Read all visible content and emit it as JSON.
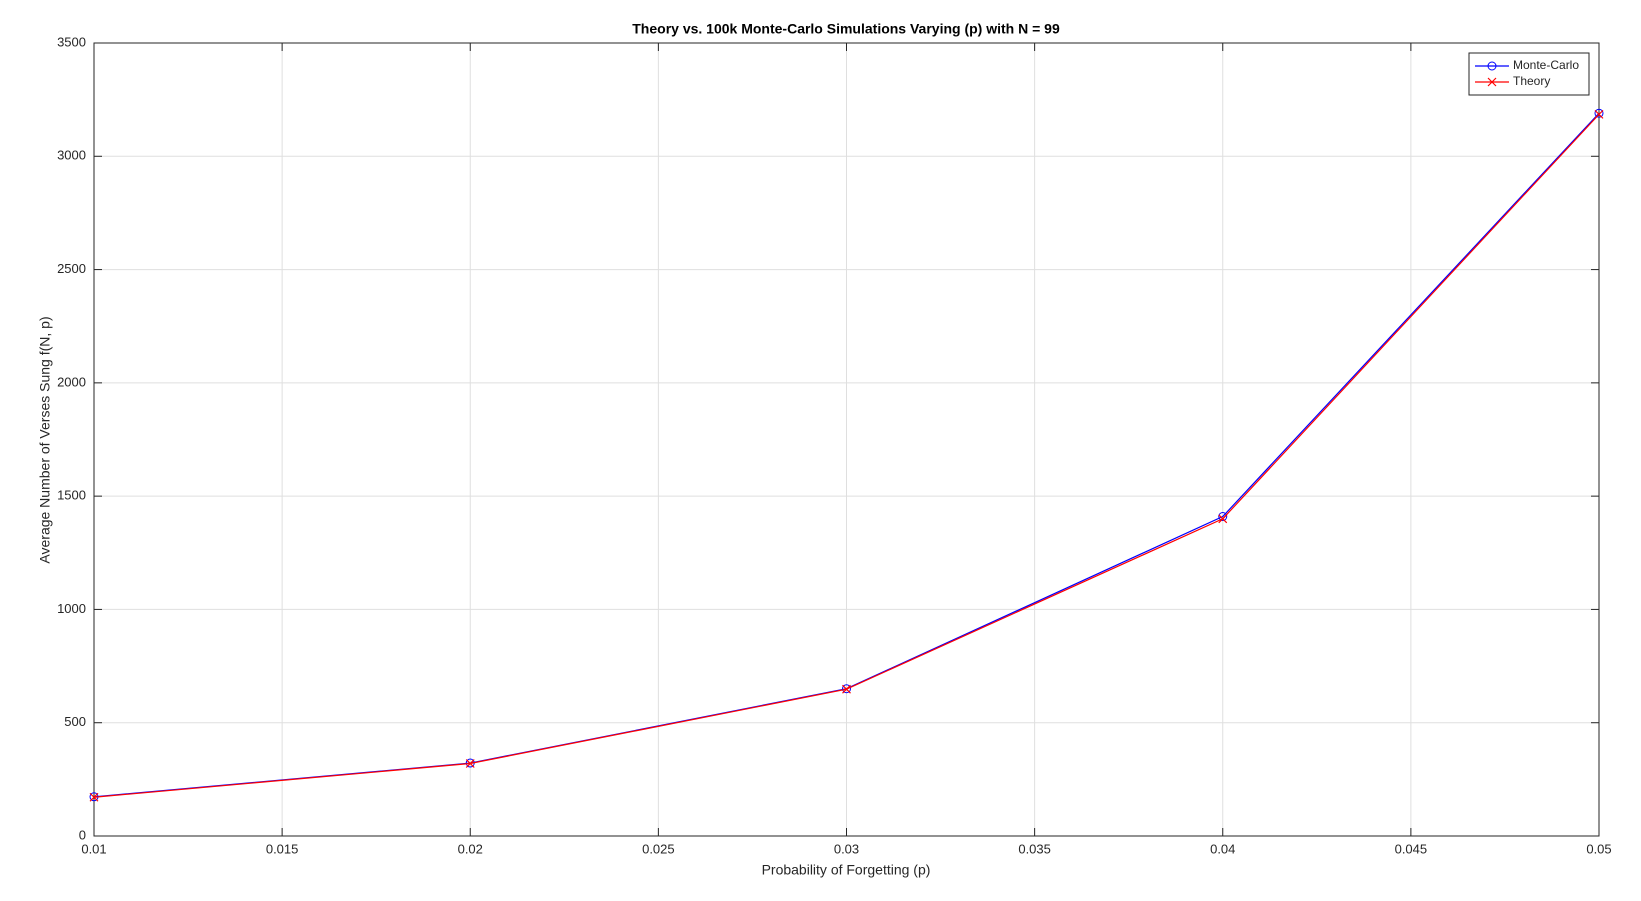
{
  "chart_data": {
    "type": "line",
    "title": "Theory vs. 100k Monte-Carlo Simulations Varying (p) with N = 99",
    "x_label": "Probability of Forgetting (p)",
    "y_label": "Average Number of Verses Sung f(N, p)",
    "x": [
      0.01,
      0.02,
      0.03,
      0.04,
      0.05
    ],
    "series": [
      {
        "name": "Monte-Carlo",
        "color": "#0000ff",
        "marker": "circle",
        "values": [
          173,
          322,
          650,
          1410,
          3190
        ]
      },
      {
        "name": "Theory",
        "color": "#ff0000",
        "marker": "x",
        "values": [
          171,
          320,
          648,
          1400,
          3185
        ]
      }
    ],
    "xlim": [
      0.01,
      0.05
    ],
    "xticks": [
      0.01,
      0.015,
      0.02,
      0.025,
      0.03,
      0.035,
      0.04,
      0.045,
      0.05
    ],
    "ylim": [
      0,
      3500
    ],
    "yticks": [
      0,
      500,
      1000,
      1500,
      2000,
      2500,
      3000,
      3500
    ],
    "grid": true,
    "legend": "northeast"
  }
}
